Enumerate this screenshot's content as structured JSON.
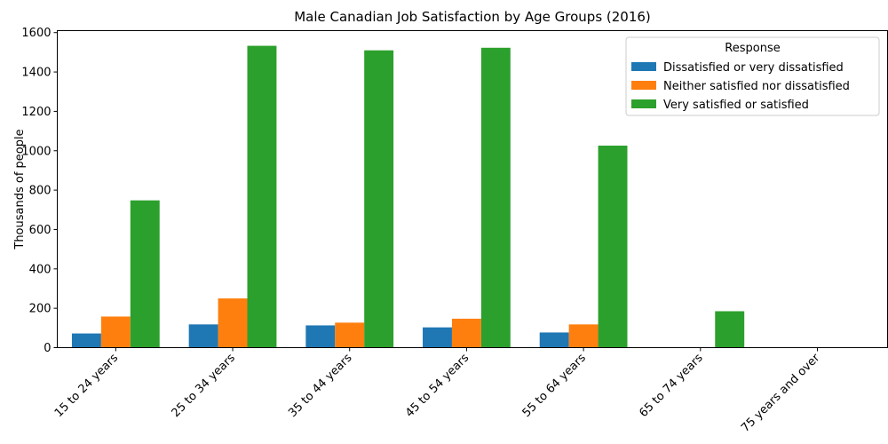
{
  "chart_data": {
    "type": "bar",
    "title": "Male Canadian Job Satisfaction by Age Groups (2016)",
    "xlabel": "",
    "ylabel": "Thousands of people",
    "ylim": [
      0,
      1610
    ],
    "yticks": [
      0,
      200,
      400,
      600,
      800,
      1000,
      1200,
      1400,
      1600
    ],
    "grid": false,
    "legend": {
      "title": "Response",
      "position": "top-right"
    },
    "categories": [
      "15 to 24 years",
      "25 to 34 years",
      "35 to 44 years",
      "45 to 54 years",
      "55 to 64 years",
      "65 to 74 years",
      "75 years and over"
    ],
    "series": [
      {
        "name": "Dissatisfied or very dissatisfied",
        "color": "#1f77b4",
        "values": [
          72,
          118,
          113,
          103,
          77,
          0,
          0
        ]
      },
      {
        "name": "Neither satisfied nor dissatisfied",
        "color": "#ff7f0e",
        "values": [
          158,
          250,
          127,
          147,
          118,
          0,
          0
        ]
      },
      {
        "name": "Very satisfied or satisfied",
        "color": "#2ca02c",
        "values": [
          748,
          1533,
          1510,
          1523,
          1026,
          185,
          0
        ]
      }
    ]
  }
}
